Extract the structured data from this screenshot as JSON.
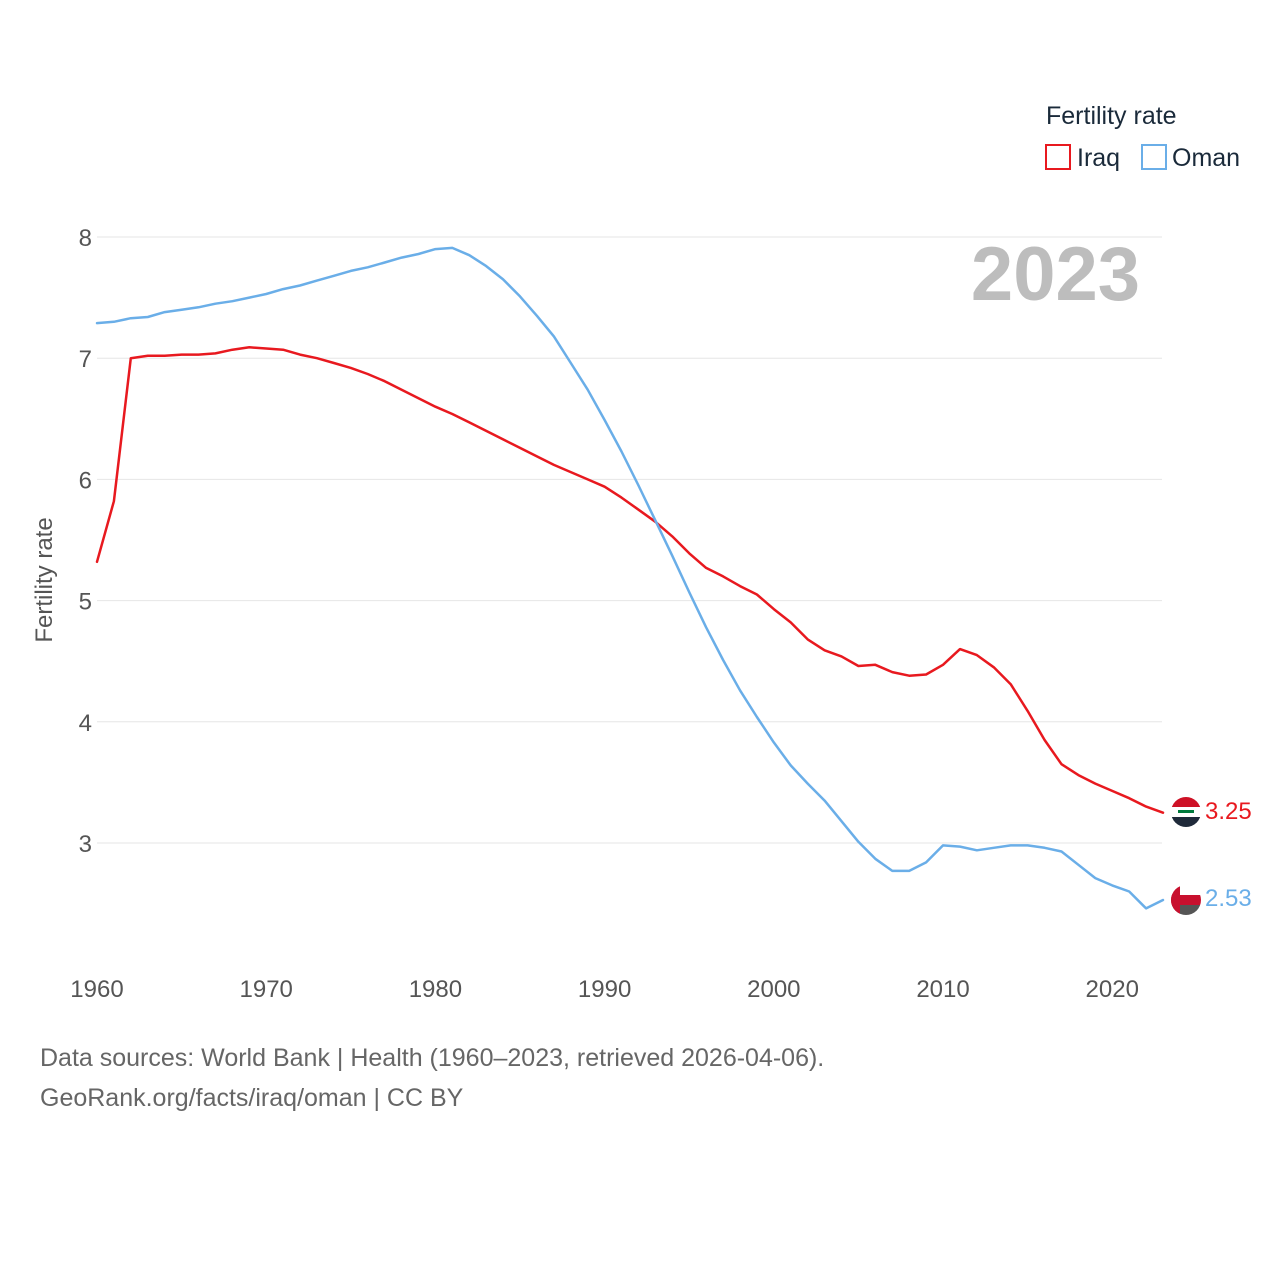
{
  "chart_data": {
    "type": "line",
    "legend_title": "Fertility rate",
    "ylabel": "Fertility rate",
    "xlabel": "",
    "year_label": "2023",
    "xlim": [
      1960,
      2023
    ],
    "ylim": [
      2.0,
      8.25
    ],
    "x_ticks": [
      1960,
      1970,
      1980,
      1990,
      2000,
      2010,
      2020
    ],
    "y_ticks": [
      3,
      4,
      5,
      6,
      7,
      8
    ],
    "grid": true,
    "legend_position": "top-right",
    "x": [
      1960,
      1961,
      1962,
      1963,
      1964,
      1965,
      1966,
      1967,
      1968,
      1969,
      1970,
      1971,
      1972,
      1973,
      1974,
      1975,
      1976,
      1977,
      1978,
      1979,
      1980,
      1981,
      1982,
      1983,
      1984,
      1985,
      1986,
      1987,
      1988,
      1989,
      1990,
      1991,
      1992,
      1993,
      1994,
      1995,
      1996,
      1997,
      1998,
      1999,
      2000,
      2001,
      2002,
      2003,
      2004,
      2005,
      2006,
      2007,
      2008,
      2009,
      2010,
      2011,
      2012,
      2013,
      2014,
      2015,
      2016,
      2017,
      2018,
      2019,
      2020,
      2021,
      2022,
      2023
    ],
    "series": [
      {
        "name": "Iraq",
        "color": "#e8191f",
        "end_label": "3.25",
        "flag_icon": "iraq-flag-icon",
        "values": [
          5.32,
          5.82,
          7.0,
          7.02,
          7.02,
          7.03,
          7.03,
          7.04,
          7.07,
          7.09,
          7.08,
          7.07,
          7.03,
          7.0,
          6.96,
          6.92,
          6.87,
          6.81,
          6.74,
          6.67,
          6.6,
          6.54,
          6.47,
          6.4,
          6.33,
          6.26,
          6.19,
          6.12,
          6.06,
          6.0,
          5.94,
          5.85,
          5.75,
          5.65,
          5.53,
          5.39,
          5.27,
          5.2,
          5.12,
          5.05,
          4.93,
          4.82,
          4.68,
          4.59,
          4.54,
          4.46,
          4.47,
          4.41,
          4.38,
          4.39,
          4.47,
          4.6,
          4.55,
          4.45,
          4.31,
          4.09,
          3.85,
          3.65,
          3.56,
          3.49,
          3.43,
          3.37,
          3.3,
          3.25
        ]
      },
      {
        "name": "Oman",
        "color": "#6aaee8",
        "end_label": "2.53",
        "flag_icon": "oman-flag-icon",
        "values": [
          7.29,
          7.3,
          7.33,
          7.34,
          7.38,
          7.4,
          7.42,
          7.45,
          7.47,
          7.5,
          7.53,
          7.57,
          7.6,
          7.64,
          7.68,
          7.72,
          7.75,
          7.79,
          7.83,
          7.86,
          7.9,
          7.91,
          7.85,
          7.76,
          7.65,
          7.51,
          7.35,
          7.18,
          6.96,
          6.74,
          6.49,
          6.23,
          5.95,
          5.66,
          5.37,
          5.07,
          4.78,
          4.51,
          4.26,
          4.04,
          3.83,
          3.64,
          3.49,
          3.35,
          3.18,
          3.01,
          2.87,
          2.77,
          2.77,
          2.84,
          2.98,
          2.97,
          2.94,
          2.96,
          2.98,
          2.98,
          2.96,
          2.93,
          2.82,
          2.71,
          2.65,
          2.6,
          2.46,
          2.53
        ]
      }
    ]
  },
  "footer": {
    "sources": "Data sources: World Bank | Health (1960–2023, retrieved 2026-04-06).",
    "attribution": "GeoRank.org/facts/iraq/oman | CC BY"
  }
}
